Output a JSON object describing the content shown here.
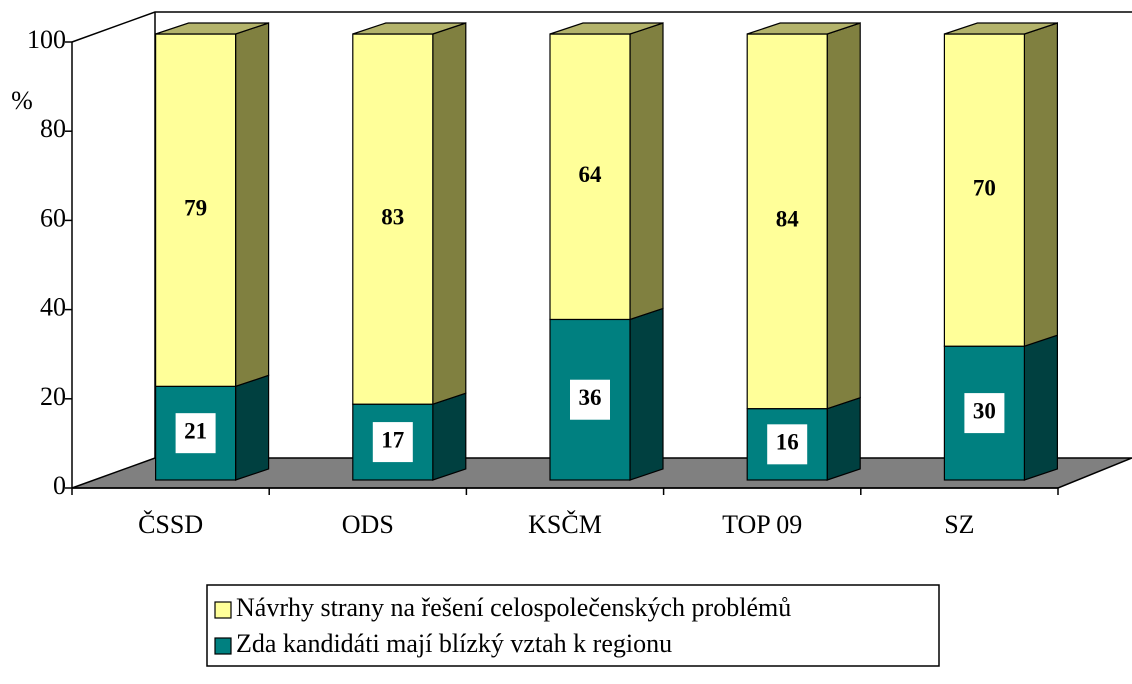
{
  "chart_data": {
    "type": "bar",
    "stacked": true,
    "y_label": "%",
    "categories": [
      "ČSSD",
      "ODS",
      "KSČM",
      "TOP 09",
      "SZ"
    ],
    "series": [
      {
        "name": "Návrhy strany na řešení celospolečenských problémů",
        "color": "#ffff99",
        "values": [
          79,
          83,
          64,
          84,
          70
        ]
      },
      {
        "name": "Zda kandidáti mají blízký vztah k regionu",
        "color": "#008080",
        "values": [
          21,
          17,
          36,
          16,
          30
        ]
      }
    ],
    "ylim": [
      0,
      100
    ],
    "yticks": [
      0,
      20,
      40,
      60,
      80,
      100
    ]
  }
}
